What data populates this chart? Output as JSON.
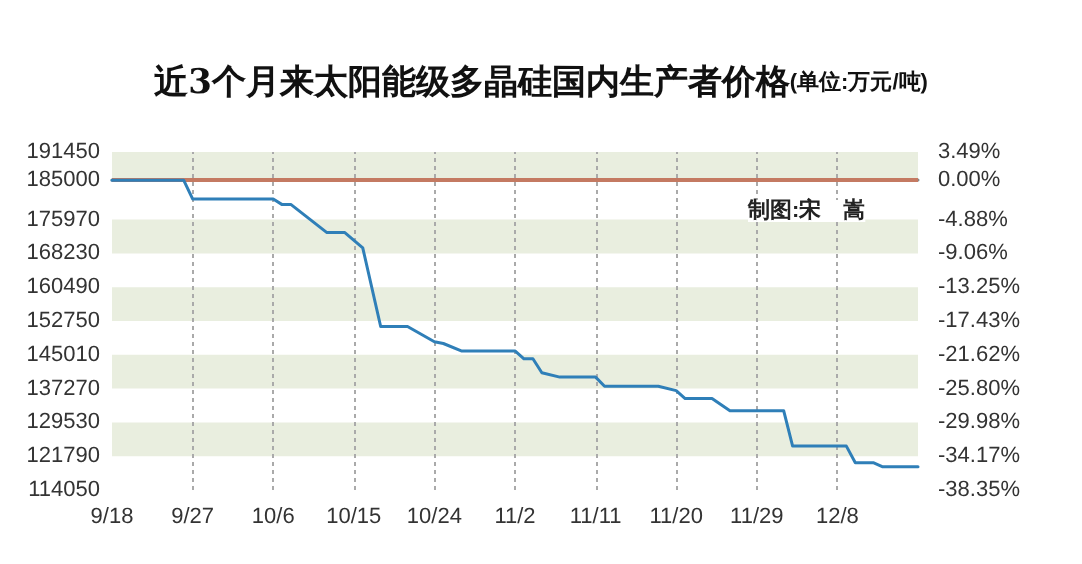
{
  "chart_data": {
    "type": "line",
    "title": "近3个月来太阳能级多晶硅国内生产者价格",
    "subtitle": "(单位:万元/吨)",
    "annotations": [
      "制图:宋　嵩"
    ],
    "x": [
      "--09-18",
      "--09-26",
      "--09-27",
      "--10-06",
      "--10-07",
      "--10-08",
      "--10-12",
      "--10-14",
      "--10-16",
      "--10-18",
      "--10-21",
      "--10-24",
      "--10-25",
      "--10-27",
      "--11-02",
      "--11-03",
      "--11-04",
      "--11-05",
      "--11-07",
      "--11-11",
      "--11-12",
      "--11-18",
      "--11-20",
      "--11-21",
      "--11-24",
      "--11-26",
      "--12-02",
      "--12-03",
      "--12-09",
      "--12-10",
      "--12-12",
      "--12-13",
      "--12-17"
    ],
    "series": [
      {
        "color": "#2f7fb8",
        "values": [
          185000,
          185000,
          180700,
          180700,
          179400,
          179400,
          173000,
          173000,
          169500,
          151500,
          151500,
          148000,
          147600,
          145900,
          145900,
          144100,
          144100,
          140900,
          139900,
          139900,
          137800,
          137800,
          136800,
          135000,
          135000,
          132200,
          132200,
          124100,
          124100,
          120300,
          120300,
          119400,
          119400
        ]
      }
    ],
    "xlim": [
      "--09-18",
      "--12-17"
    ],
    "xticks": [
      {
        "value": "--09-18",
        "label": "9/18"
      },
      {
        "value": "--09-27",
        "label": "9/27"
      },
      {
        "value": "--10-06",
        "label": "10/6"
      },
      {
        "value": "--10-15",
        "label": "10/15"
      },
      {
        "value": "--10-24",
        "label": "10/24"
      },
      {
        "value": "--11-02",
        "label": "11/2"
      },
      {
        "value": "--11-11",
        "label": "11/11"
      },
      {
        "value": "--11-20",
        "label": "11/20"
      },
      {
        "value": "--11-29",
        "label": "11/29"
      },
      {
        "value": "--12-08",
        "label": "12/8"
      }
    ],
    "ylim": [
      114050,
      191450
    ],
    "yticks": [
      114050,
      121790,
      129530,
      137270,
      145010,
      152750,
      160490,
      168230,
      175970,
      185000,
      191450
    ],
    "y2lim": [
      -38.35,
      3.49
    ],
    "y2ticks": [
      {
        "value": -38.35,
        "label": "-38.35%"
      },
      {
        "value": -34.17,
        "label": "-34.17%"
      },
      {
        "value": -29.98,
        "label": "-29.98%"
      },
      {
        "value": -25.8,
        "label": "-25.80%"
      },
      {
        "value": -21.62,
        "label": "-21.62%"
      },
      {
        "value": -17.43,
        "label": "-17.43%"
      },
      {
        "value": -13.25,
        "label": "-13.25%"
      },
      {
        "value": -9.06,
        "label": "-9.06%"
      },
      {
        "value": -4.88,
        "label": "-4.88%"
      },
      {
        "value": 0,
        "label": "0.00%"
      },
      {
        "value": 3.49,
        "label": "3.49%"
      }
    ],
    "ref_lines": [
      {
        "axis": "y",
        "value": 185000,
        "color": "#c47a62"
      }
    ],
    "bands": [
      {
        "axis": "y",
        "from": 185000,
        "to": 191450,
        "color": "#e9eedf"
      },
      {
        "axis": "y",
        "from": 168230,
        "to": 175970,
        "color": "#e9eedf"
      },
      {
        "axis": "y",
        "from": 152750,
        "to": 160490,
        "color": "#e9eedf"
      },
      {
        "axis": "y",
        "from": 137270,
        "to": 145010,
        "color": "#e9eedf"
      },
      {
        "axis": "y",
        "from": 121790,
        "to": 129530,
        "color": "#e9eedf"
      }
    ],
    "grid": "x",
    "marker": "none",
    "line_style": "solid"
  }
}
